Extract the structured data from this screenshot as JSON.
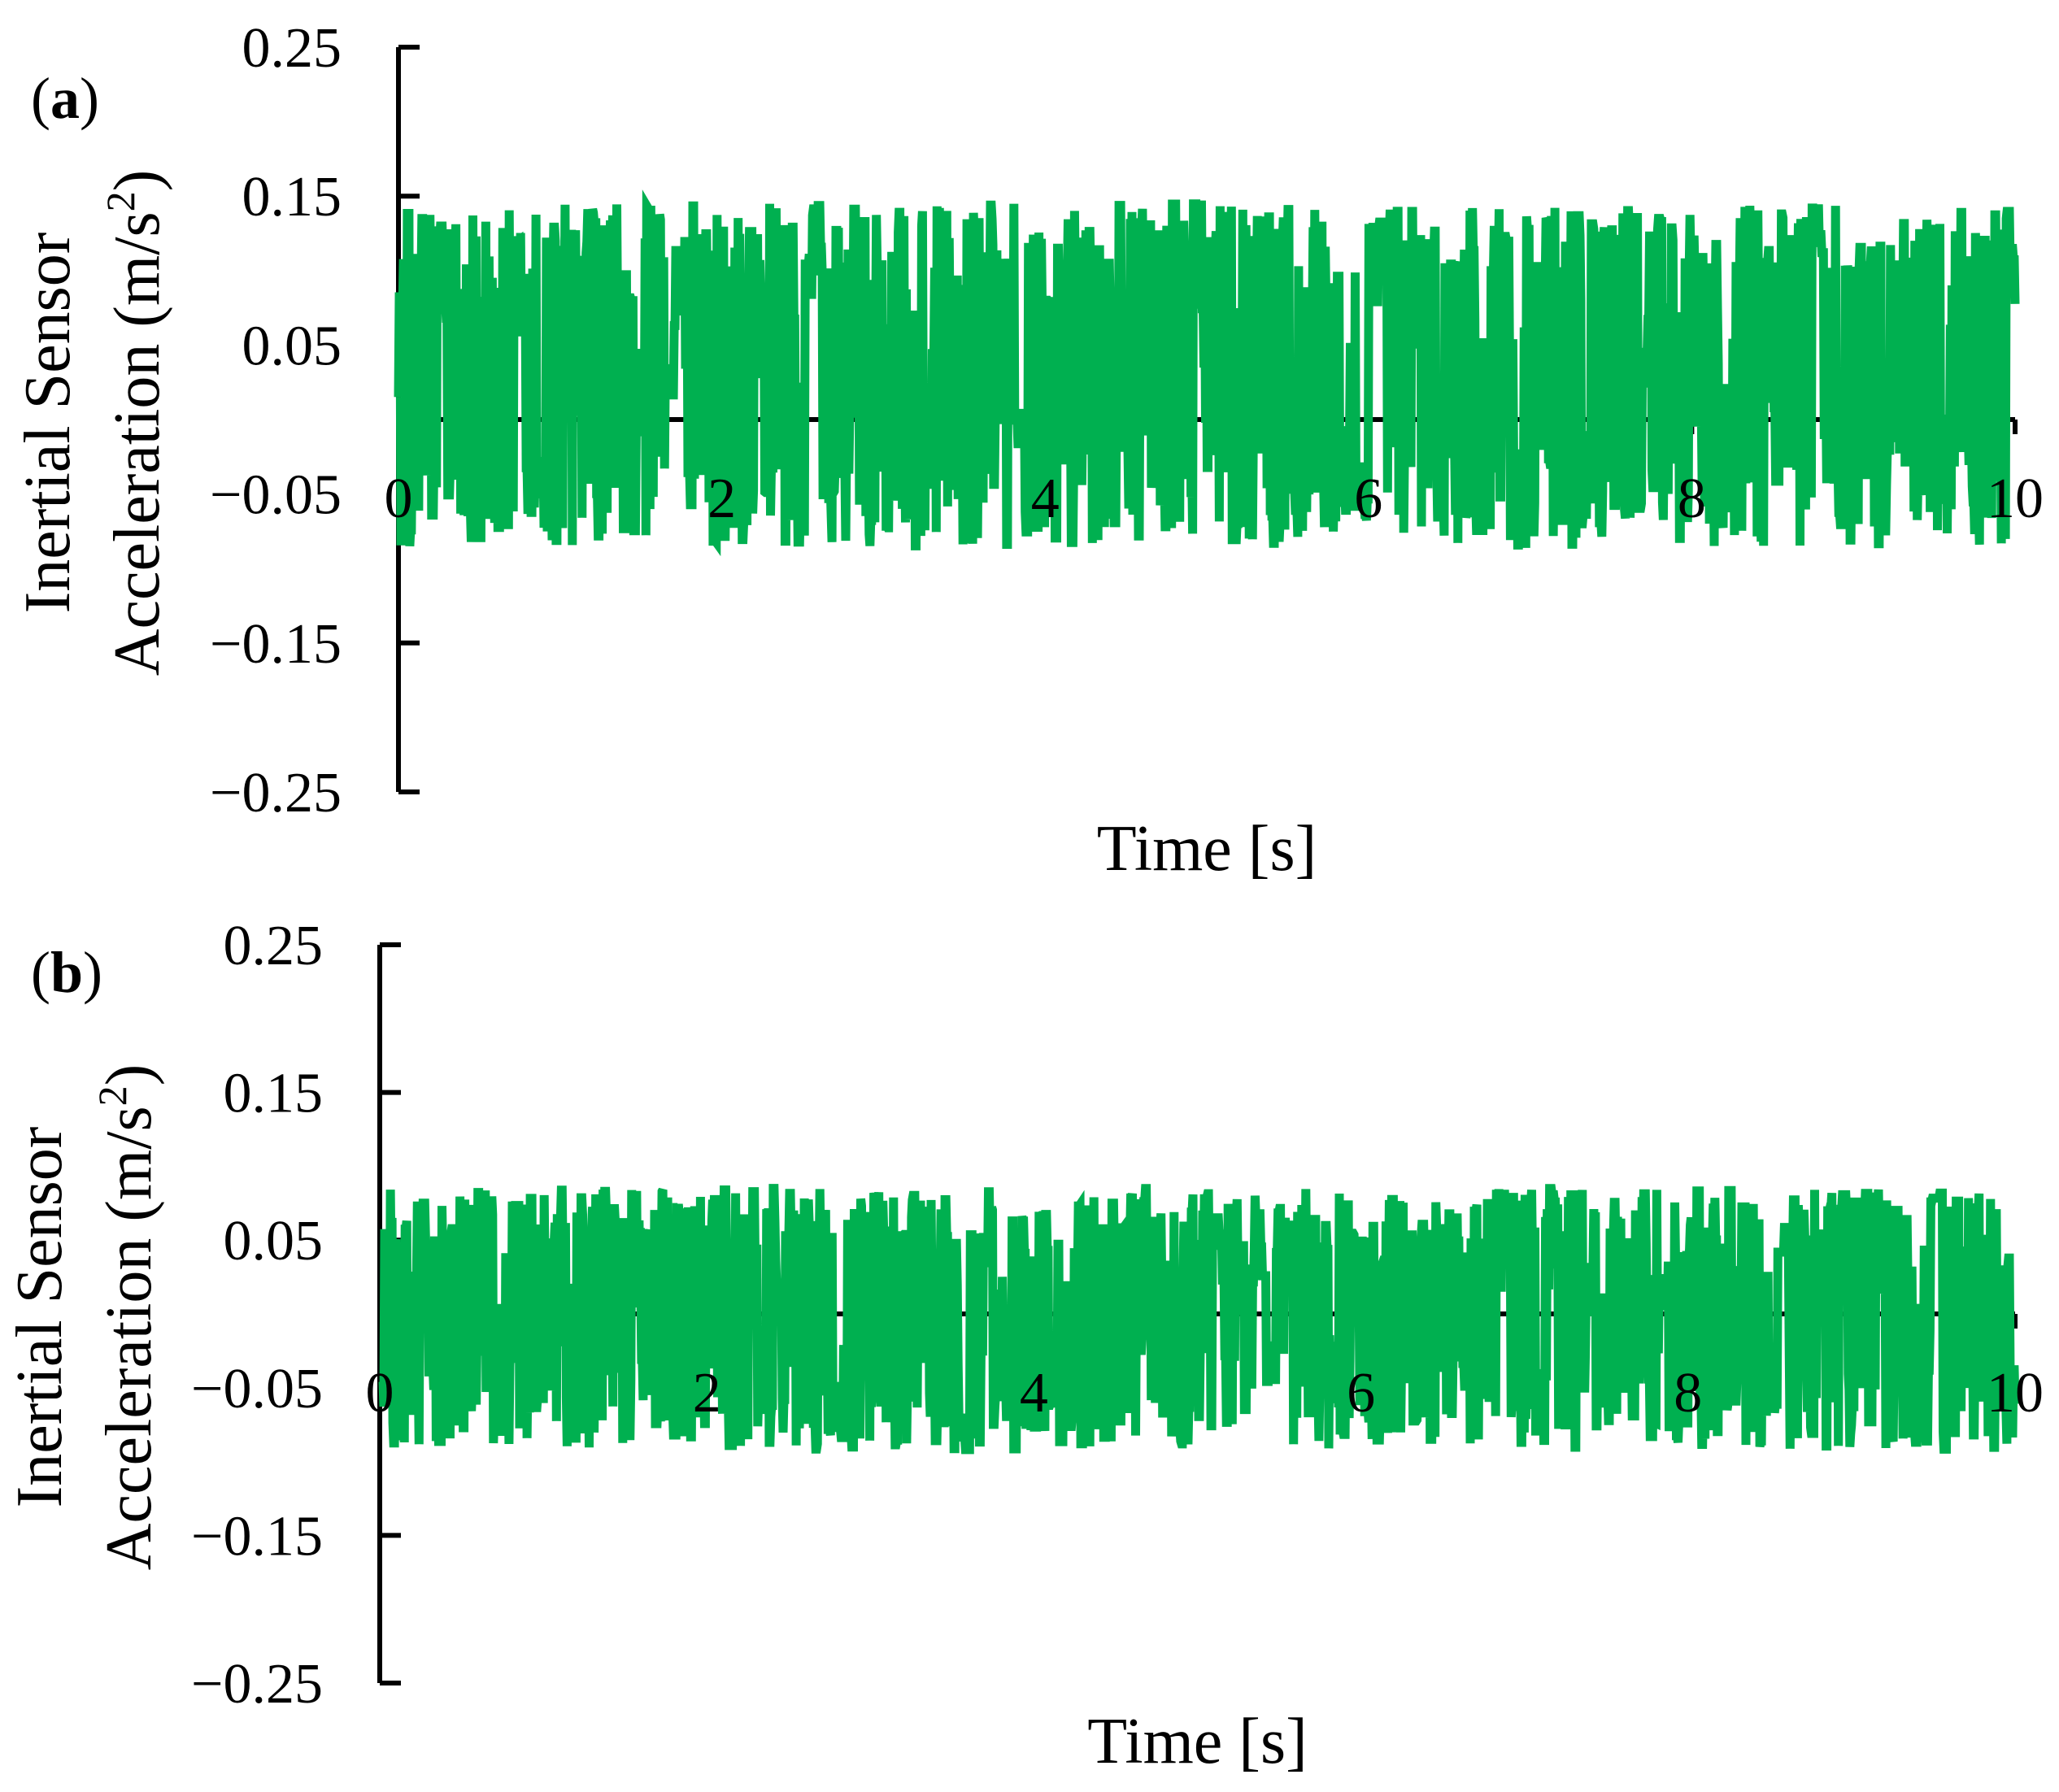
{
  "chart_data": [
    {
      "type": "line",
      "panel_label": "(a)",
      "panel_label_letter": "a",
      "xlabel": "Time [s]",
      "ylabel_line1": "Inertial Sensor",
      "ylabel_line2_prefix": "Acceleration (m/s",
      "ylabel_line2_sup": "2",
      "ylabel_line2_suffix": ")",
      "xlim": [
        0,
        10
      ],
      "ylim": [
        -0.25,
        0.25
      ],
      "xticks": [
        0,
        2,
        4,
        6,
        8,
        10
      ],
      "xtick_labels": [
        "0",
        "2",
        "4",
        "6",
        "8",
        "10"
      ],
      "yticks": [
        0.25,
        0.15,
        0.05,
        -0.05,
        -0.15,
        -0.25
      ],
      "ytick_labels": [
        "0.25",
        "0.15",
        "0.05",
        "−0.05",
        "−0.15",
        "−0.25"
      ],
      "x_axis_crosses_y": 0,
      "grid": false,
      "signal": {
        "t_start": 0,
        "t_end": 10,
        "samples": 2000,
        "mean": 0.03,
        "min": -0.085,
        "max": 0.145
      },
      "series_color": "#00B050"
    },
    {
      "type": "line",
      "panel_label": "(b)",
      "panel_label_letter": "b",
      "xlabel": "Time [s]",
      "ylabel_line1": "Inertial Sensor",
      "ylabel_line2_prefix": "Acceleration (m/s",
      "ylabel_line2_sup": "2",
      "ylabel_line2_suffix": ")",
      "xlim": [
        0,
        10
      ],
      "ylim": [
        -0.25,
        0.25
      ],
      "xticks": [
        0,
        2,
        4,
        6,
        8,
        10
      ],
      "xtick_labels": [
        "0",
        "2",
        "4",
        "6",
        "8",
        "10"
      ],
      "yticks": [
        0.25,
        0.15,
        0.05,
        -0.05,
        -0.15,
        -0.25
      ],
      "ytick_labels": [
        "0.25",
        "0.15",
        "0.05",
        "−0.05",
        "−0.15",
        "−0.25"
      ],
      "x_axis_crosses_y": 0,
      "grid": false,
      "signal": {
        "t_start": 0,
        "t_end": 10,
        "samples": 2000,
        "mean": 0.0,
        "min": -0.092,
        "max": 0.085
      },
      "series_color": "#00B050"
    }
  ]
}
